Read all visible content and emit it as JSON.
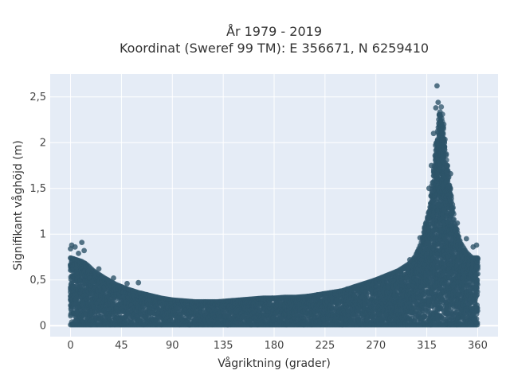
{
  "chart_data": {
    "type": "scatter",
    "title_line1": "År 1979 - 2019",
    "title_line2": "Koordinat (Sweref 99 TM): E 356671, N 6259410",
    "xlabel": "Vågriktning (grader)",
    "ylabel": "Signifikant våghöjd (m)",
    "xlim": [
      -18,
      378
    ],
    "ylim": [
      -0.12,
      2.75
    ],
    "x_ticks": [
      0,
      45,
      90,
      135,
      180,
      225,
      270,
      315,
      360
    ],
    "x_tick_labels": [
      "0",
      "45",
      "90",
      "135",
      "180",
      "225",
      "270",
      "315",
      "360"
    ],
    "y_ticks": [
      0,
      0.5,
      1,
      1.5,
      2,
      2.5
    ],
    "y_tick_labels": [
      "0",
      "0,5",
      "1",
      "1,5",
      "2",
      "2,5"
    ],
    "grid": true,
    "marker_color": "#2e5469",
    "plot_background": "#e5ecf6",
    "envelope": {
      "direction": [
        0,
        5,
        10,
        15,
        20,
        30,
        40,
        50,
        60,
        70,
        80,
        90,
        100,
        110,
        120,
        130,
        140,
        150,
        160,
        170,
        180,
        190,
        200,
        210,
        220,
        230,
        240,
        250,
        260,
        270,
        280,
        290,
        300,
        305,
        310,
        315,
        318,
        320,
        323,
        326,
        328,
        330,
        332,
        335,
        338,
        340,
        345,
        350,
        355,
        360
      ],
      "max_height": [
        0.74,
        0.72,
        0.7,
        0.66,
        0.6,
        0.52,
        0.45,
        0.4,
        0.36,
        0.33,
        0.3,
        0.28,
        0.27,
        0.26,
        0.26,
        0.26,
        0.27,
        0.28,
        0.29,
        0.3,
        0.3,
        0.31,
        0.31,
        0.32,
        0.34,
        0.36,
        0.38,
        0.42,
        0.46,
        0.5,
        0.55,
        0.6,
        0.68,
        0.76,
        0.9,
        1.15,
        1.3,
        1.55,
        1.95,
        2.3,
        2.4,
        2.2,
        1.9,
        1.55,
        1.3,
        1.1,
        0.9,
        0.8,
        0.74,
        0.74
      ],
      "min_height": 0.01
    },
    "outliers": [
      {
        "x": 0,
        "y": 0.84
      },
      {
        "x": 1,
        "y": 0.88
      },
      {
        "x": 4,
        "y": 0.86
      },
      {
        "x": 10,
        "y": 0.91
      },
      {
        "x": 12,
        "y": 0.82
      },
      {
        "x": 7,
        "y": 0.79
      },
      {
        "x": 25,
        "y": 0.62
      },
      {
        "x": 38,
        "y": 0.52
      },
      {
        "x": 50,
        "y": 0.46
      },
      {
        "x": 60,
        "y": 0.47
      },
      {
        "x": 300,
        "y": 0.72
      },
      {
        "x": 309,
        "y": 0.96
      },
      {
        "x": 313,
        "y": 1.06
      },
      {
        "x": 317,
        "y": 1.5
      },
      {
        "x": 319,
        "y": 1.75
      },
      {
        "x": 321,
        "y": 2.1
      },
      {
        "x": 323,
        "y": 2.38
      },
      {
        "x": 324,
        "y": 2.62
      },
      {
        "x": 325,
        "y": 2.44
      },
      {
        "x": 326,
        "y": 2.3
      },
      {
        "x": 330,
        "y": 2.02
      },
      {
        "x": 333,
        "y": 1.75
      },
      {
        "x": 336,
        "y": 1.66
      },
      {
        "x": 342,
        "y": 1.12
      },
      {
        "x": 350,
        "y": 0.95
      },
      {
        "x": 356,
        "y": 0.86
      },
      {
        "x": 359,
        "y": 0.88
      },
      {
        "x": 139,
        "y": 0.01
      },
      {
        "x": 148,
        "y": 0.03
      },
      {
        "x": 225,
        "y": 0.02
      }
    ]
  }
}
